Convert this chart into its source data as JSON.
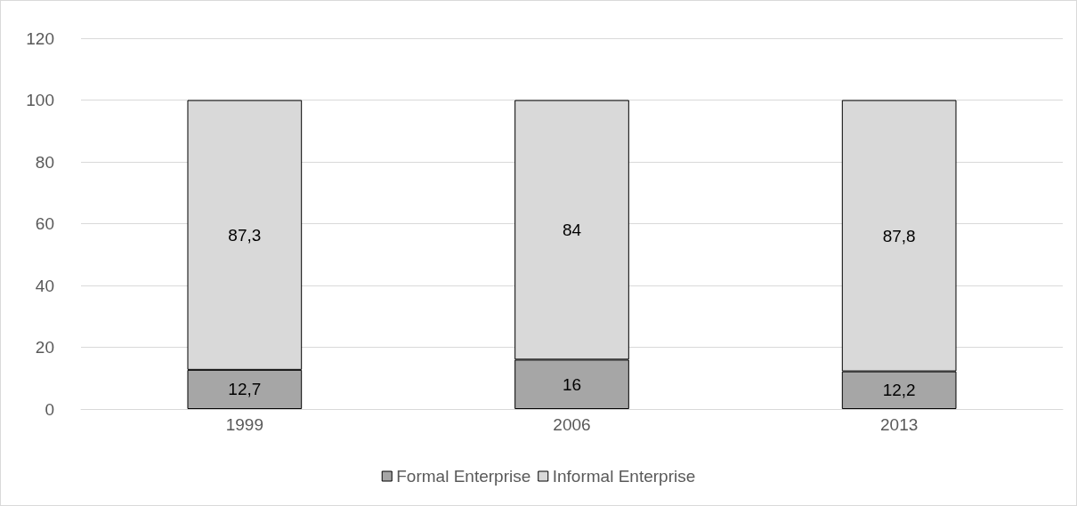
{
  "chart_data": {
    "type": "bar",
    "stacked": true,
    "categories": [
      "1999",
      "2006",
      "2013"
    ],
    "series": [
      {
        "name": "Formal Enterprise",
        "color": "#a6a6a6",
        "values": [
          12.7,
          16,
          12.2
        ],
        "value_labels": [
          "12,7",
          "16",
          "12,2"
        ]
      },
      {
        "name": "Informal Enterprise",
        "color": "#d9d9d9",
        "values": [
          87.3,
          84,
          87.8
        ],
        "value_labels": [
          "87,3",
          "84",
          "87,8"
        ]
      }
    ],
    "ylim": [
      0,
      120
    ],
    "yticks": [
      0,
      20,
      40,
      60,
      80,
      100,
      120
    ],
    "grid": "y",
    "legend": "bottom"
  }
}
